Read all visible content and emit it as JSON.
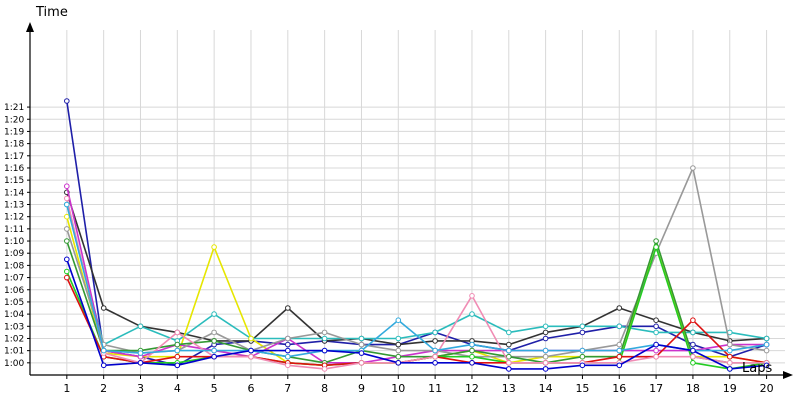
{
  "chart_data": {
    "type": "line",
    "title": "",
    "xlabel": "Laps",
    "ylabel": "Time",
    "x": [
      1,
      2,
      3,
      4,
      5,
      6,
      7,
      8,
      9,
      10,
      11,
      12,
      13,
      14,
      15,
      16,
      17,
      18,
      19,
      20
    ],
    "xlim": [
      0,
      20.5
    ],
    "ylim_seconds": [
      59,
      87
    ],
    "yticks": [
      "1:00",
      "1:01",
      "1:02",
      "1:03",
      "1:04",
      "1:05",
      "1:06",
      "1:07",
      "1:08",
      "1:09",
      "1:10",
      "1:11",
      "1:12",
      "1:13",
      "1:14",
      "1:15",
      "1:16",
      "1:17",
      "1:18",
      "1:19",
      "1:20",
      "1:21"
    ],
    "grid": true,
    "legend": "none",
    "series": [
      {
        "color": "#1f1fa8",
        "values": [
          81.5,
          61.0,
          60.5,
          59.8,
          61.5,
          61.8,
          61.5,
          61.8,
          61.5,
          61.5,
          62.5,
          61.5,
          61.0,
          62.0,
          62.5,
          63.0,
          63.0,
          61.5,
          60.5,
          61.5
        ]
      },
      {
        "color": "#333333",
        "values": [
          74.0,
          64.5,
          63.0,
          62.5,
          61.8,
          61.8,
          64.5,
          61.8,
          62.0,
          61.5,
          61.8,
          61.8,
          61.5,
          62.5,
          63.0,
          64.5,
          63.5,
          62.5,
          61.8,
          62.0
        ]
      },
      {
        "color": "#2bbcbc",
        "values": [
          73.0,
          61.5,
          63.0,
          61.8,
          64.0,
          62.0,
          62.0,
          62.0,
          62.0,
          62.0,
          62.5,
          64.0,
          62.5,
          63.0,
          63.0,
          63.0,
          62.5,
          62.5,
          62.5,
          62.0
        ]
      },
      {
        "color": "#e6e600",
        "values": [
          72.0,
          60.8,
          60.5,
          60.5,
          69.5,
          62.0,
          60.0,
          59.8,
          60.0,
          60.0,
          60.5,
          61.0,
          60.0,
          60.5,
          60.5,
          60.5,
          69.5,
          60.5,
          60.5,
          60.0
        ]
      },
      {
        "color": "#cc33cc",
        "values": [
          74.5,
          61.0,
          60.5,
          61.5,
          61.0,
          60.5,
          62.0,
          60.0,
          60.0,
          60.5,
          61.0,
          61.0,
          61.0,
          61.0,
          61.0,
          61.0,
          61.0,
          61.0,
          61.5,
          61.5
        ]
      },
      {
        "color": "#999999",
        "values": [
          71.0,
          61.5,
          60.8,
          61.0,
          62.5,
          61.0,
          62.0,
          62.5,
          61.5,
          61.0,
          61.0,
          60.5,
          60.5,
          60.5,
          61.0,
          61.5,
          69.0,
          76.0,
          61.5,
          61.0
        ]
      },
      {
        "color": "#339933",
        "values": [
          70.0,
          61.0,
          61.0,
          61.5,
          61.8,
          61.0,
          60.5,
          60.0,
          61.0,
          60.5,
          60.5,
          61.0,
          60.5,
          60.0,
          60.5,
          60.5,
          70.0,
          60.5,
          60.0,
          60.0
        ]
      },
      {
        "color": "#22cc22",
        "values": [
          67.5,
          60.5,
          60.0,
          60.0,
          60.5,
          60.5,
          60.0,
          59.8,
          60.0,
          60.0,
          60.5,
          60.5,
          60.0,
          60.0,
          60.0,
          60.0,
          69.5,
          60.0,
          59.5,
          60.0
        ]
      },
      {
        "color": "#dd1111",
        "values": [
          67.0,
          60.5,
          60.0,
          60.5,
          60.5,
          60.5,
          60.0,
          59.8,
          60.0,
          60.0,
          60.5,
          60.0,
          60.0,
          60.0,
          60.0,
          60.5,
          60.5,
          63.5,
          60.5,
          60.0
        ]
      },
      {
        "color": "#f08cb4",
        "values": [
          73.5,
          60.8,
          60.0,
          62.5,
          60.5,
          60.5,
          59.8,
          59.5,
          60.0,
          60.0,
          60.5,
          65.5,
          60.0,
          60.0,
          60.0,
          60.0,
          60.5,
          60.5,
          60.0,
          60.0
        ]
      },
      {
        "color": "#33aadd",
        "values": [
          73.0,
          61.0,
          60.8,
          61.0,
          61.0,
          61.0,
          60.5,
          61.0,
          61.0,
          63.5,
          61.0,
          61.5,
          61.0,
          61.0,
          61.0,
          61.0,
          61.5,
          61.0,
          61.0,
          61.5
        ]
      },
      {
        "color": "#0000cc",
        "values": [
          68.5,
          59.8,
          60.0,
          59.8,
          60.5,
          61.0,
          61.0,
          61.0,
          60.8,
          60.0,
          60.0,
          60.0,
          59.5,
          59.5,
          59.8,
          59.8,
          61.5,
          61.0,
          59.5,
          59.8
        ]
      }
    ]
  }
}
